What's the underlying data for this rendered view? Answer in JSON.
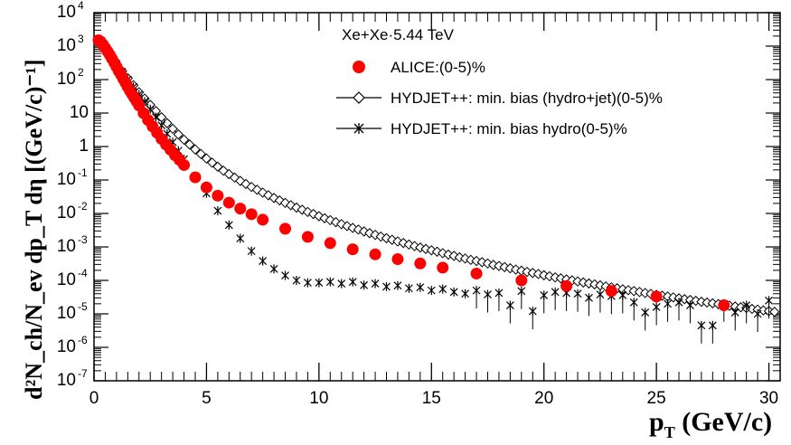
{
  "chart_data": {
    "type": "scatter",
    "title": "Xe+Xe·5.44 TeV",
    "xlabel": "p_T (GeV/c)",
    "ylabel": "d²N_ch/N_ev dp_T dη [(GeV/c)⁻¹]",
    "xlim": [
      0,
      30.5
    ],
    "ylim_log10": [
      -7,
      4
    ],
    "log_y": true,
    "x_ticks": [
      "0",
      "5",
      "10",
      "15",
      "20",
      "25",
      "30"
    ],
    "y_tick_labels": [
      {
        "mantissa": "10",
        "exponent": "-7"
      },
      {
        "mantissa": "10",
        "exponent": "-6"
      },
      {
        "mantissa": "10",
        "exponent": "-5"
      },
      {
        "mantissa": "10",
        "exponent": "-4"
      },
      {
        "mantissa": "10",
        "exponent": "-3"
      },
      {
        "mantissa": "10",
        "exponent": "-2"
      },
      {
        "mantissa": "10",
        "exponent": "-1"
      },
      {
        "mantissa": "1",
        "exponent": ""
      },
      {
        "mantissa": "10",
        "exponent": ""
      },
      {
        "mantissa": "10",
        "exponent": "2"
      },
      {
        "mantissa": "10",
        "exponent": "3"
      },
      {
        "mantissa": "10",
        "exponent": "4"
      }
    ],
    "legend_position": "top-right",
    "series": [
      {
        "name": "ALICE:(0-5)%",
        "marker": "filled-circle",
        "color": "#ff0000",
        "x": [
          0.2,
          0.3,
          0.4,
          0.5,
          0.6,
          0.7,
          0.8,
          0.9,
          1.0,
          1.1,
          1.2,
          1.3,
          1.4,
          1.5,
          1.6,
          1.7,
          1.8,
          1.9,
          2.0,
          2.2,
          2.4,
          2.6,
          2.8,
          3.0,
          3.2,
          3.4,
          3.6,
          3.8,
          4.0,
          4.5,
          5.0,
          5.5,
          6.0,
          6.5,
          7.0,
          7.5,
          8.5,
          9.5,
          10.5,
          11.5,
          12.5,
          13.5,
          14.5,
          15.5,
          17.0,
          19.0,
          21.0,
          23.0,
          25.0,
          28.0
        ],
        "y": [
          1500,
          1350,
          1100,
          880,
          700,
          550,
          420,
          320,
          240,
          180,
          140,
          105,
          80,
          60,
          46,
          36,
          28,
          22,
          17,
          10,
          6.2,
          4.0,
          2.6,
          1.7,
          1.15,
          0.8,
          0.55,
          0.4,
          0.28,
          0.12,
          0.06,
          0.034,
          0.021,
          0.014,
          0.0095,
          0.0065,
          0.0035,
          0.002,
          0.0013,
          0.00085,
          0.0006,
          0.00043,
          0.00032,
          0.00024,
          0.00016,
          0.0001,
          6.8e-05,
          4.8e-05,
          3.3e-05,
          1.8e-05
        ]
      },
      {
        "name": "HYDJET++: min. bias (hydro+jet)(0-5)%",
        "marker": "open-diamond",
        "color": "#000000",
        "x": [
          0.25,
          0.5,
          0.75,
          1.0,
          1.25,
          1.5,
          1.75,
          2.0,
          2.25,
          2.5,
          2.75,
          3.0,
          3.25,
          3.5,
          3.75,
          4.0,
          4.25,
          4.5,
          4.75,
          5.0,
          5.25,
          5.5,
          5.75,
          6.0,
          6.25,
          6.5,
          6.75,
          7.0,
          7.25,
          7.5,
          7.75,
          8.0,
          8.25,
          8.5,
          8.75,
          9.0,
          9.25,
          9.5,
          9.75,
          10.0,
          10.25,
          10.5,
          10.75,
          11.0,
          11.25,
          11.5,
          11.75,
          12.0,
          12.25,
          12.5,
          12.75,
          13.0,
          13.25,
          13.5,
          13.75,
          14.0,
          14.25,
          14.5,
          14.75,
          15.0,
          15.25,
          15.5,
          15.75,
          16.0,
          16.25,
          16.5,
          16.75,
          17.0,
          17.25,
          17.5,
          17.75,
          18.0,
          18.25,
          18.5,
          18.75,
          19.0,
          19.25,
          19.5,
          19.75,
          20.0,
          20.25,
          20.5,
          20.75,
          21.0,
          21.25,
          21.5,
          21.75,
          22.0,
          22.25,
          22.5,
          22.75,
          23.0,
          23.25,
          23.5,
          23.75,
          24.0,
          24.25,
          24.5,
          24.75,
          25.0,
          25.25,
          25.5,
          25.75,
          26.0,
          26.25,
          26.5,
          26.75,
          27.0,
          27.25,
          27.5,
          27.75,
          28.0,
          28.25,
          28.5,
          28.75,
          29.0,
          29.25,
          29.5,
          29.75,
          30.0,
          30.25
        ],
        "y": [
          1550,
          900,
          520,
          300,
          180,
          110,
          68,
          42,
          27,
          17.5,
          11.5,
          7.5,
          5.0,
          3.4,
          2.3,
          1.6,
          1.15,
          0.82,
          0.6,
          0.44,
          0.33,
          0.25,
          0.19,
          0.15,
          0.118,
          0.094,
          0.076,
          0.062,
          0.051,
          0.042,
          0.035,
          0.029,
          0.0245,
          0.0207,
          0.0176,
          0.015,
          0.0129,
          0.0111,
          0.0096,
          0.0083,
          0.0072,
          0.0063,
          0.0055,
          0.0048,
          0.0042,
          0.0037,
          0.0033,
          0.0029,
          0.00258,
          0.00229,
          0.00204,
          0.00182,
          0.00163,
          0.00146,
          0.00131,
          0.00118,
          0.00106,
          0.00096,
          0.00087,
          0.00079,
          0.00072,
          0.00065,
          0.00059,
          0.00054,
          0.00049,
          0.00045,
          0.00041,
          0.00038,
          0.00035,
          0.00032,
          0.00029,
          0.00027,
          0.00025,
          0.00023,
          0.00021,
          0.000195,
          0.00018,
          0.000167,
          0.000155,
          0.000143,
          0.000133,
          0.000123,
          0.000115,
          0.000107,
          0.0001,
          9.3e-05,
          8.7e-05,
          8.1e-05,
          7.6e-05,
          7.1e-05,
          6.6e-05,
          6.2e-05,
          5.8e-05,
          5.4e-05,
          5.1e-05,
          4.8e-05,
          4.5e-05,
          4.2e-05,
          3.95e-05,
          3.7e-05,
          3.5e-05,
          3.3e-05,
          3.1e-05,
          2.9e-05,
          2.75e-05,
          2.6e-05,
          2.45e-05,
          2.3e-05,
          2.18e-05,
          2.06e-05,
          1.95e-05,
          1.85e-05,
          1.75e-05,
          1.66e-05,
          1.57e-05,
          1.49e-05,
          1.41e-05,
          1.34e-05,
          1.27e-05,
          1.21e-05,
          1.15e-05
        ]
      },
      {
        "name": "HYDJET++: min. bias hydro(0-5)%",
        "marker": "star",
        "color": "#000000",
        "x": [
          0.25,
          0.5,
          0.75,
          1.0,
          1.25,
          1.5,
          1.75,
          2.0,
          2.25,
          2.5,
          2.75,
          3.0,
          3.25,
          3.5,
          3.75,
          4.0,
          4.5,
          5.0,
          5.5,
          6.0,
          6.5,
          7.0,
          7.5,
          8.0,
          8.5,
          9.0,
          9.5,
          10.0,
          10.5,
          11.0,
          11.5,
          12.0,
          12.5,
          13.0,
          13.5,
          14.0,
          14.5,
          15.0,
          15.5,
          16.0,
          16.5,
          17.0,
          17.5,
          18.0,
          18.5,
          19.0,
          19.5,
          20.0,
          20.5,
          21.0,
          21.5,
          22.0,
          22.5,
          23.0,
          23.5,
          24.0,
          24.5,
          25.0,
          25.5,
          26.0,
          26.5,
          27.0,
          27.5,
          28.0,
          28.5,
          29.0,
          29.5,
          30.0
        ],
        "y": [
          1500,
          880,
          500,
          290,
          170,
          100,
          60,
          36,
          22,
          13,
          7.5,
          4.3,
          2.4,
          1.35,
          0.75,
          0.42,
          0.13,
          0.04,
          0.012,
          0.0045,
          0.0018,
          0.00075,
          0.00038,
          0.00022,
          0.00014,
          0.0001,
          8.5e-05,
          8.5e-05,
          9e-05,
          8e-05,
          9e-05,
          7.2e-05,
          8e-05,
          6.5e-05,
          7e-05,
          5.8e-05,
          6.2e-05,
          5e-05,
          5.5e-05,
          4.5e-05,
          4e-05,
          5e-05,
          3.8e-05,
          4.2e-05,
          1.8e-05,
          4.8e-05,
          1.2e-05,
          3.6e-05,
          4.5e-05,
          4.2e-05,
          4e-05,
          3e-05,
          3.8e-05,
          3.4e-05,
          3.6e-05,
          2.2e-05,
          1.1e-05,
          1.6e-05,
          2e-05,
          2.2e-05,
          1.8e-05,
          4.5e-06,
          4.5e-06,
          2e-05,
          1.1e-05,
          1.8e-05,
          1e-05,
          2.5e-05
        ]
      }
    ]
  },
  "chart_texts": {
    "title": "Xe+Xe·5.44 TeV",
    "xlabel_main": "p",
    "xlabel_sub": "T",
    "xlabel_units": " (GeV/c)",
    "ylabel": "d²N_ch/N_ev dp_T dη [(GeV/c)⁻¹]"
  }
}
